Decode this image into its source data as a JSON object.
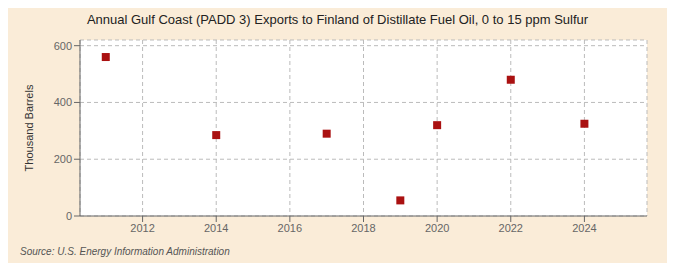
{
  "chart_data": {
    "type": "scatter",
    "title": "Annual Gulf Coast (PADD 3) Exports to Finland of Distillate Fuel Oil, 0 to 15 ppm Sulfur",
    "ylabel": "Thousand Barrels",
    "source": "Source: U.S. Energy Information Administration",
    "x": [
      2011,
      2014,
      2017,
      2019,
      2020,
      2022,
      2024
    ],
    "values": [
      560,
      285,
      290,
      55,
      320,
      480,
      325
    ],
    "color": "#aa1111",
    "marker": "square",
    "xlim": [
      2010.3,
      2025.7
    ],
    "xticks": [
      2012,
      2014,
      2016,
      2018,
      2020,
      2022,
      2024
    ],
    "ylim": [
      0,
      620
    ],
    "yticks": [
      0,
      200,
      400,
      600
    ],
    "grid": true
  }
}
